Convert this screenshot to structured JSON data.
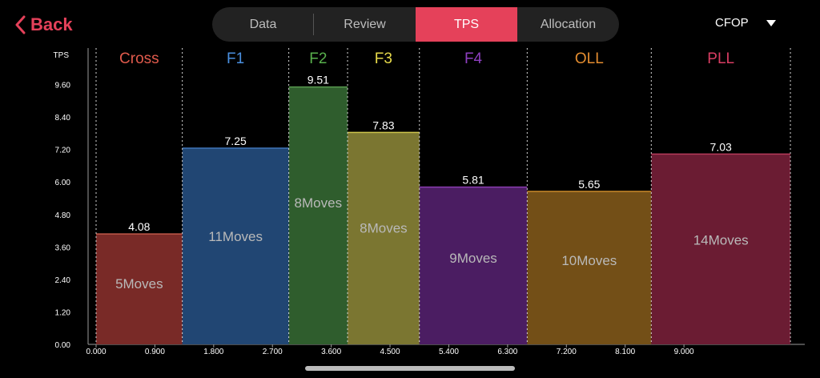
{
  "nav": {
    "back_label": "Back",
    "tabs": [
      {
        "label": "Data",
        "active": false
      },
      {
        "label": "Review",
        "active": false
      },
      {
        "label": "TPS",
        "active": true
      },
      {
        "label": "Allocation",
        "active": false
      }
    ],
    "method_label": "CFOP"
  },
  "colors": {
    "accent": "#e5415a"
  },
  "chart_data": {
    "type": "bar",
    "ylabel": "TPS",
    "ylim": [
      0,
      10.8
    ],
    "yticks": [
      "0.00",
      "1.20",
      "2.40",
      "3.60",
      "4.80",
      "6.00",
      "7.20",
      "8.40",
      "9.60"
    ],
    "xticks": [
      {
        "value": 0.0,
        "label": "0.000"
      },
      {
        "value": 0.9,
        "label": "0.900"
      },
      {
        "value": 1.8,
        "label": "1.800"
      },
      {
        "value": 2.7,
        "label": "2.700"
      },
      {
        "value": 3.6,
        "label": "3.600"
      },
      {
        "value": 4.5,
        "label": "4.500"
      },
      {
        "value": 5.4,
        "label": "5.400"
      },
      {
        "value": 6.3,
        "label": "6.300"
      },
      {
        "value": 7.2,
        "label": "7.200"
      },
      {
        "value": 8.1,
        "label": "8.100"
      },
      {
        "value": 9.0,
        "label": "9.000"
      }
    ],
    "xlim": [
      0,
      10.85
    ],
    "bars": [
      {
        "name": "Cross",
        "start": 0.0,
        "end": 1.32,
        "value": 4.08,
        "value_label": "4.08",
        "moves_label": "5Moves",
        "fill": "#792a27",
        "edge": "#c05848",
        "name_color": "#e05a4c"
      },
      {
        "name": "F1",
        "start": 1.32,
        "end": 2.95,
        "value": 7.25,
        "value_label": "7.25",
        "moves_label": "11Moves",
        "fill": "#214673",
        "edge": "#3f74b8",
        "name_color": "#4a8fdf"
      },
      {
        "name": "F2",
        "start": 2.95,
        "end": 3.85,
        "value": 9.51,
        "value_label": "9.51",
        "moves_label": "8Moves",
        "fill": "#2f5d2d",
        "edge": "#5a9a50",
        "name_color": "#58b04c"
      },
      {
        "name": "F3",
        "start": 3.85,
        "end": 4.95,
        "value": 7.83,
        "value_label": "7.83",
        "moves_label": "8Moves",
        "fill": "#7b7631",
        "edge": "#cfc64c",
        "name_color": "#e6d94a"
      },
      {
        "name": "F4",
        "start": 4.95,
        "end": 6.6,
        "value": 5.81,
        "value_label": "5.81",
        "moves_label": "9Moves",
        "fill": "#4b1d62",
        "edge": "#8a3db0",
        "name_color": "#8e3fc0"
      },
      {
        "name": "OLL",
        "start": 6.6,
        "end": 8.5,
        "value": 5.65,
        "value_label": "5.65",
        "moves_label": "10Moves",
        "fill": "#734f17",
        "edge": "#c98a2a",
        "name_color": "#e38c2f"
      },
      {
        "name": "PLL",
        "start": 8.5,
        "end": 10.63,
        "value": 7.03,
        "value_label": "7.03",
        "moves_label": "14Moves",
        "fill": "#6b1c33",
        "edge": "#b83a5a",
        "name_color": "#d83d62"
      }
    ]
  }
}
